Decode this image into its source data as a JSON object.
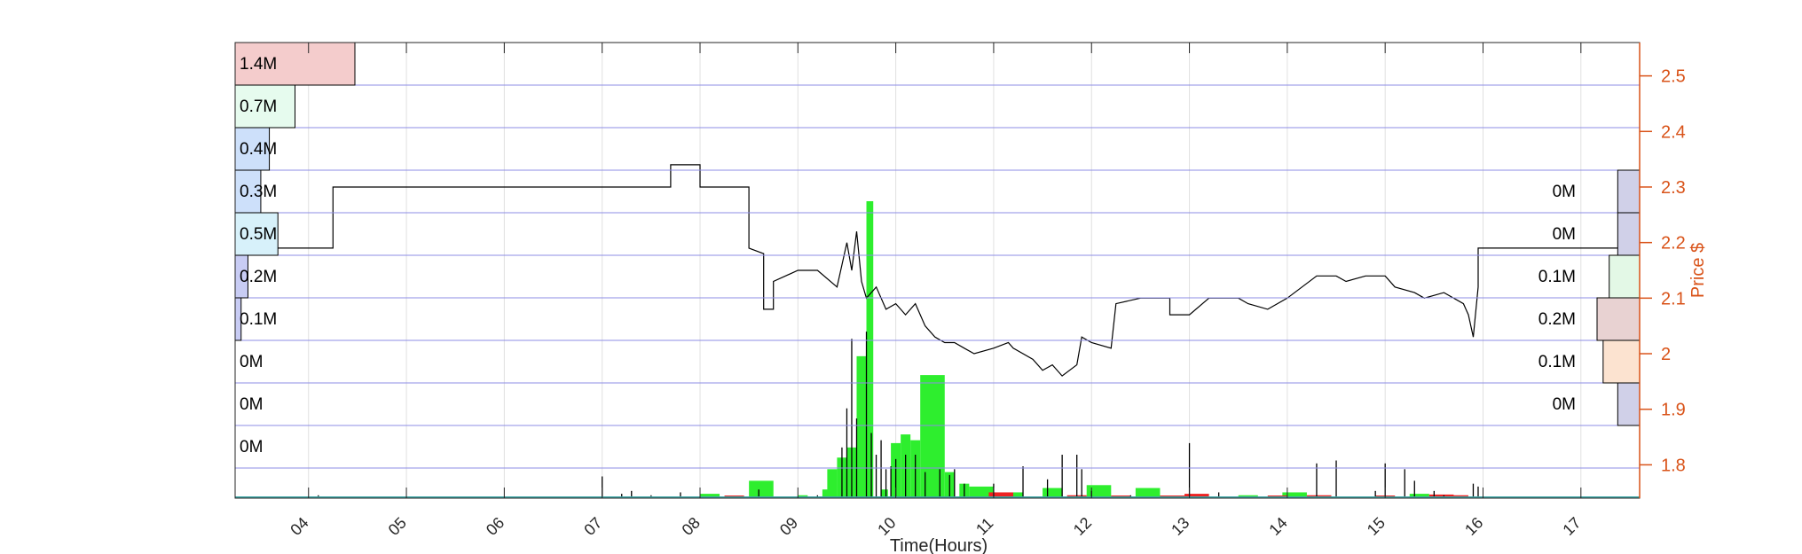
{
  "chart_data": {
    "type": "bar",
    "xlabel": "Time(Hours)",
    "ylabel_right": "Price $",
    "x_ticks": [
      "04",
      "05",
      "06",
      "07",
      "08",
      "09",
      "10",
      "11",
      "12",
      "13",
      "14",
      "15",
      "16",
      "17"
    ],
    "y_right_ticks": [
      "1.8",
      "1.9",
      "2",
      "2.1",
      "2.2",
      "2.3",
      "2.4",
      "2.5"
    ],
    "xlim": [
      3.25,
      17.6
    ],
    "ylim_right": [
      1.74,
      2.56
    ],
    "grid": true,
    "price_line": [
      [
        3.25,
        2.19
      ],
      [
        4.25,
        2.19
      ],
      [
        4.25,
        2.3
      ],
      [
        7.0,
        2.3
      ],
      [
        7.7,
        2.3
      ],
      [
        7.7,
        2.34
      ],
      [
        8.0,
        2.34
      ],
      [
        8.0,
        2.3
      ],
      [
        8.5,
        2.3
      ],
      [
        8.5,
        2.19
      ],
      [
        8.65,
        2.18
      ],
      [
        8.65,
        2.08
      ],
      [
        8.75,
        2.08
      ],
      [
        8.75,
        2.13
      ],
      [
        9.0,
        2.15
      ],
      [
        9.2,
        2.15
      ],
      [
        9.4,
        2.12
      ],
      [
        9.5,
        2.2
      ],
      [
        9.55,
        2.15
      ],
      [
        9.6,
        2.22
      ],
      [
        9.65,
        2.13
      ],
      [
        9.7,
        2.1
      ],
      [
        9.8,
        2.12
      ],
      [
        9.9,
        2.08
      ],
      [
        10.0,
        2.09
      ],
      [
        10.1,
        2.07
      ],
      [
        10.2,
        2.09
      ],
      [
        10.3,
        2.05
      ],
      [
        10.4,
        2.03
      ],
      [
        10.5,
        2.02
      ],
      [
        10.6,
        2.02
      ],
      [
        10.7,
        2.01
      ],
      [
        10.8,
        2.0
      ],
      [
        11.0,
        2.01
      ],
      [
        11.15,
        2.02
      ],
      [
        11.2,
        2.01
      ],
      [
        11.4,
        1.99
      ],
      [
        11.5,
        1.97
      ],
      [
        11.6,
        1.98
      ],
      [
        11.7,
        1.96
      ],
      [
        11.85,
        1.98
      ],
      [
        11.9,
        2.03
      ],
      [
        12.0,
        2.02
      ],
      [
        12.2,
        2.01
      ],
      [
        12.25,
        2.09
      ],
      [
        12.5,
        2.1
      ],
      [
        12.8,
        2.1
      ],
      [
        12.8,
        2.07
      ],
      [
        13.0,
        2.07
      ],
      [
        13.2,
        2.1
      ],
      [
        13.5,
        2.1
      ],
      [
        13.6,
        2.09
      ],
      [
        13.8,
        2.08
      ],
      [
        14.0,
        2.1
      ],
      [
        14.3,
        2.14
      ],
      [
        14.5,
        2.14
      ],
      [
        14.6,
        2.13
      ],
      [
        14.8,
        2.14
      ],
      [
        15.0,
        2.14
      ],
      [
        15.1,
        2.12
      ],
      [
        15.3,
        2.11
      ],
      [
        15.4,
        2.1
      ],
      [
        15.6,
        2.11
      ],
      [
        15.8,
        2.09
      ],
      [
        15.85,
        2.07
      ],
      [
        15.9,
        2.03
      ],
      [
        15.95,
        2.12
      ],
      [
        15.95,
        2.19
      ],
      [
        17.6,
        2.19
      ]
    ],
    "volume_buy_bars": [
      {
        "x": 8.0,
        "w": 0.2,
        "v": 0.03
      },
      {
        "x": 8.5,
        "w": 0.25,
        "v": 0.12
      },
      {
        "x": 9.0,
        "w": 0.1,
        "v": 0.02
      },
      {
        "x": 9.25,
        "w": 0.1,
        "v": 0.06
      },
      {
        "x": 9.3,
        "w": 0.1,
        "v": 0.2
      },
      {
        "x": 9.4,
        "w": 0.1,
        "v": 0.28
      },
      {
        "x": 9.5,
        "w": 0.1,
        "v": 0.35
      },
      {
        "x": 9.6,
        "w": 0.1,
        "v": 0.98
      },
      {
        "x": 9.7,
        "w": 0.07,
        "v": 2.05
      },
      {
        "x": 9.85,
        "w": 0.07,
        "v": 0.06
      },
      {
        "x": 9.95,
        "w": 0.1,
        "v": 0.38
      },
      {
        "x": 10.05,
        "w": 0.1,
        "v": 0.44
      },
      {
        "x": 10.15,
        "w": 0.1,
        "v": 0.4
      },
      {
        "x": 10.25,
        "w": 0.25,
        "v": 0.85
      },
      {
        "x": 10.5,
        "w": 0.1,
        "v": 0.18
      },
      {
        "x": 10.65,
        "w": 0.1,
        "v": 0.1
      },
      {
        "x": 10.75,
        "w": 0.25,
        "v": 0.08
      },
      {
        "x": 11.2,
        "w": 0.1,
        "v": 0.04
      },
      {
        "x": 11.5,
        "w": 0.2,
        "v": 0.07
      },
      {
        "x": 11.95,
        "w": 0.25,
        "v": 0.09
      },
      {
        "x": 12.45,
        "w": 0.25,
        "v": 0.07
      },
      {
        "x": 13.5,
        "w": 0.2,
        "v": 0.02
      },
      {
        "x": 13.95,
        "w": 0.25,
        "v": 0.04
      },
      {
        "x": 15.25,
        "w": 0.2,
        "v": 0.03
      }
    ],
    "volume_sell_bars": [
      {
        "x": 8.25,
        "w": 0.2,
        "v": 0.005
      },
      {
        "x": 10.95,
        "w": 0.25,
        "v": 0.04
      },
      {
        "x": 11.75,
        "w": 0.2,
        "v": 0.02
      },
      {
        "x": 12.2,
        "w": 0.2,
        "v": 0.01
      },
      {
        "x": 12.7,
        "w": 0.25,
        "v": 0.015
      },
      {
        "x": 12.95,
        "w": 0.25,
        "v": 0.03
      },
      {
        "x": 13.8,
        "w": 0.2,
        "v": 0.01
      },
      {
        "x": 14.2,
        "w": 0.25,
        "v": 0.02
      },
      {
        "x": 14.9,
        "w": 0.2,
        "v": 0.008
      },
      {
        "x": 15.45,
        "w": 0.25,
        "v": 0.025
      },
      {
        "x": 15.6,
        "w": 0.25,
        "v": 0.02
      }
    ],
    "volume_spikes": [
      [
        4.1,
        0.02
      ],
      [
        7.0,
        0.15
      ],
      [
        7.2,
        0.03
      ],
      [
        7.3,
        0.05
      ],
      [
        7.5,
        0.02
      ],
      [
        7.8,
        0.04
      ],
      [
        8.6,
        0.06
      ],
      [
        9.2,
        0.02
      ],
      [
        9.45,
        0.35
      ],
      [
        9.5,
        0.62
      ],
      [
        9.55,
        1.1
      ],
      [
        9.6,
        0.55
      ],
      [
        9.7,
        1.15
      ],
      [
        9.75,
        0.45
      ],
      [
        9.8,
        0.3
      ],
      [
        9.85,
        0.4
      ],
      [
        9.9,
        0.2
      ],
      [
        9.95,
        0.22
      ],
      [
        10.0,
        0.27
      ],
      [
        10.1,
        0.3
      ],
      [
        10.2,
        0.3
      ],
      [
        10.3,
        0.18
      ],
      [
        10.45,
        0.2
      ],
      [
        10.55,
        0.16
      ],
      [
        10.6,
        0.2
      ],
      [
        10.7,
        0.1
      ],
      [
        11.0,
        0.1
      ],
      [
        11.3,
        0.22
      ],
      [
        11.55,
        0.13
      ],
      [
        11.7,
        0.3
      ],
      [
        11.85,
        0.3
      ],
      [
        11.9,
        0.2
      ],
      [
        12.0,
        0.05
      ],
      [
        12.4,
        0.02
      ],
      [
        13.0,
        0.38
      ],
      [
        13.3,
        0.04
      ],
      [
        14.3,
        0.24
      ],
      [
        14.5,
        0.26
      ],
      [
        14.9,
        0.05
      ],
      [
        15.0,
        0.24
      ],
      [
        15.2,
        0.2
      ],
      [
        15.3,
        0.12
      ],
      [
        15.5,
        0.05
      ],
      [
        15.6,
        0.02
      ],
      [
        15.9,
        0.1
      ],
      [
        15.95,
        0.08
      ]
    ],
    "volume_profile_left": [
      {
        "label": "1.4M",
        "value": 1.4,
        "color": "#F4CCCC"
      },
      {
        "label": "0.7M",
        "value": 0.7,
        "color": "#E6FBEE"
      },
      {
        "label": "0.4M",
        "value": 0.4,
        "color": "#CDE0FA"
      },
      {
        "label": "0.3M",
        "value": 0.3,
        "color": "#CDE0FA"
      },
      {
        "label": "0.5M",
        "value": 0.5,
        "color": "#D7F1FA"
      },
      {
        "label": "0.2M",
        "value": 0.15,
        "color": "#C8CCF4"
      },
      {
        "label": "0.1M",
        "value": 0.07,
        "color": "#C8CCF4"
      },
      {
        "label": "0M",
        "value": 0,
        "color": "#FFFFFF"
      },
      {
        "label": "0M",
        "value": 0,
        "color": "#FFFFFF"
      },
      {
        "label": "0M",
        "value": 0,
        "color": "#FFFFFF"
      }
    ],
    "volume_profile_right": [
      {
        "label": "0M",
        "value": 0.18,
        "color": "#D0D0E8"
      },
      {
        "label": "0M",
        "value": 0.18,
        "color": "#D0D0E8"
      },
      {
        "label": "0.1M",
        "value": 0.25,
        "color": "#E3F8E6"
      },
      {
        "label": "0.2M",
        "value": 0.35,
        "color": "#E8D2D2"
      },
      {
        "label": "0.1M",
        "value": 0.3,
        "color": "#FCE3D0"
      },
      {
        "label": "0M",
        "value": 0.18,
        "color": "#D0D0E8"
      }
    ],
    "colors": {
      "buy": "#2EEE2E",
      "sell": "#EE2222",
      "price": "#000000",
      "right_axis": "#D95319",
      "band_lines": "#8C8CE6",
      "grid": "#E0E0E0",
      "baseline": "#3FA7A7"
    }
  }
}
